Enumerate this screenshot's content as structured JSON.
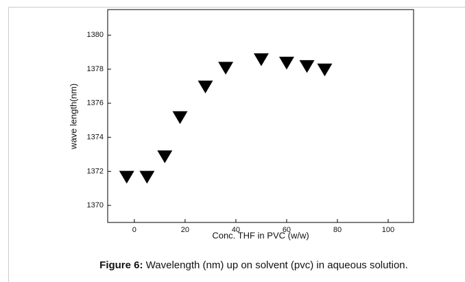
{
  "chart_data": {
    "type": "scatter",
    "x_label": "Conc. THF in PVC (w/w)",
    "y_label": "wave length(nm)",
    "caption_label": "Figure 6:",
    "caption_text": "Wavelength (nm) up on solvent (pvc) in aqueous solution.",
    "marker": "triangle-down",
    "color": "#000000",
    "x": [
      -3,
      5,
      12,
      18,
      28,
      36,
      50,
      60,
      68,
      75
    ],
    "values": [
      1371.7,
      1371.7,
      1372.9,
      1375.2,
      1377.0,
      1378.1,
      1378.6,
      1378.4,
      1378.2,
      1378.0
    ],
    "xlim": [
      -10.5,
      110
    ],
    "ylim": [
      1369,
      1381.5
    ],
    "xticks": [
      0,
      20,
      40,
      60,
      80,
      100
    ],
    "yticks": [
      1370,
      1372,
      1374,
      1376,
      1378,
      1380
    ],
    "grid": false
  }
}
